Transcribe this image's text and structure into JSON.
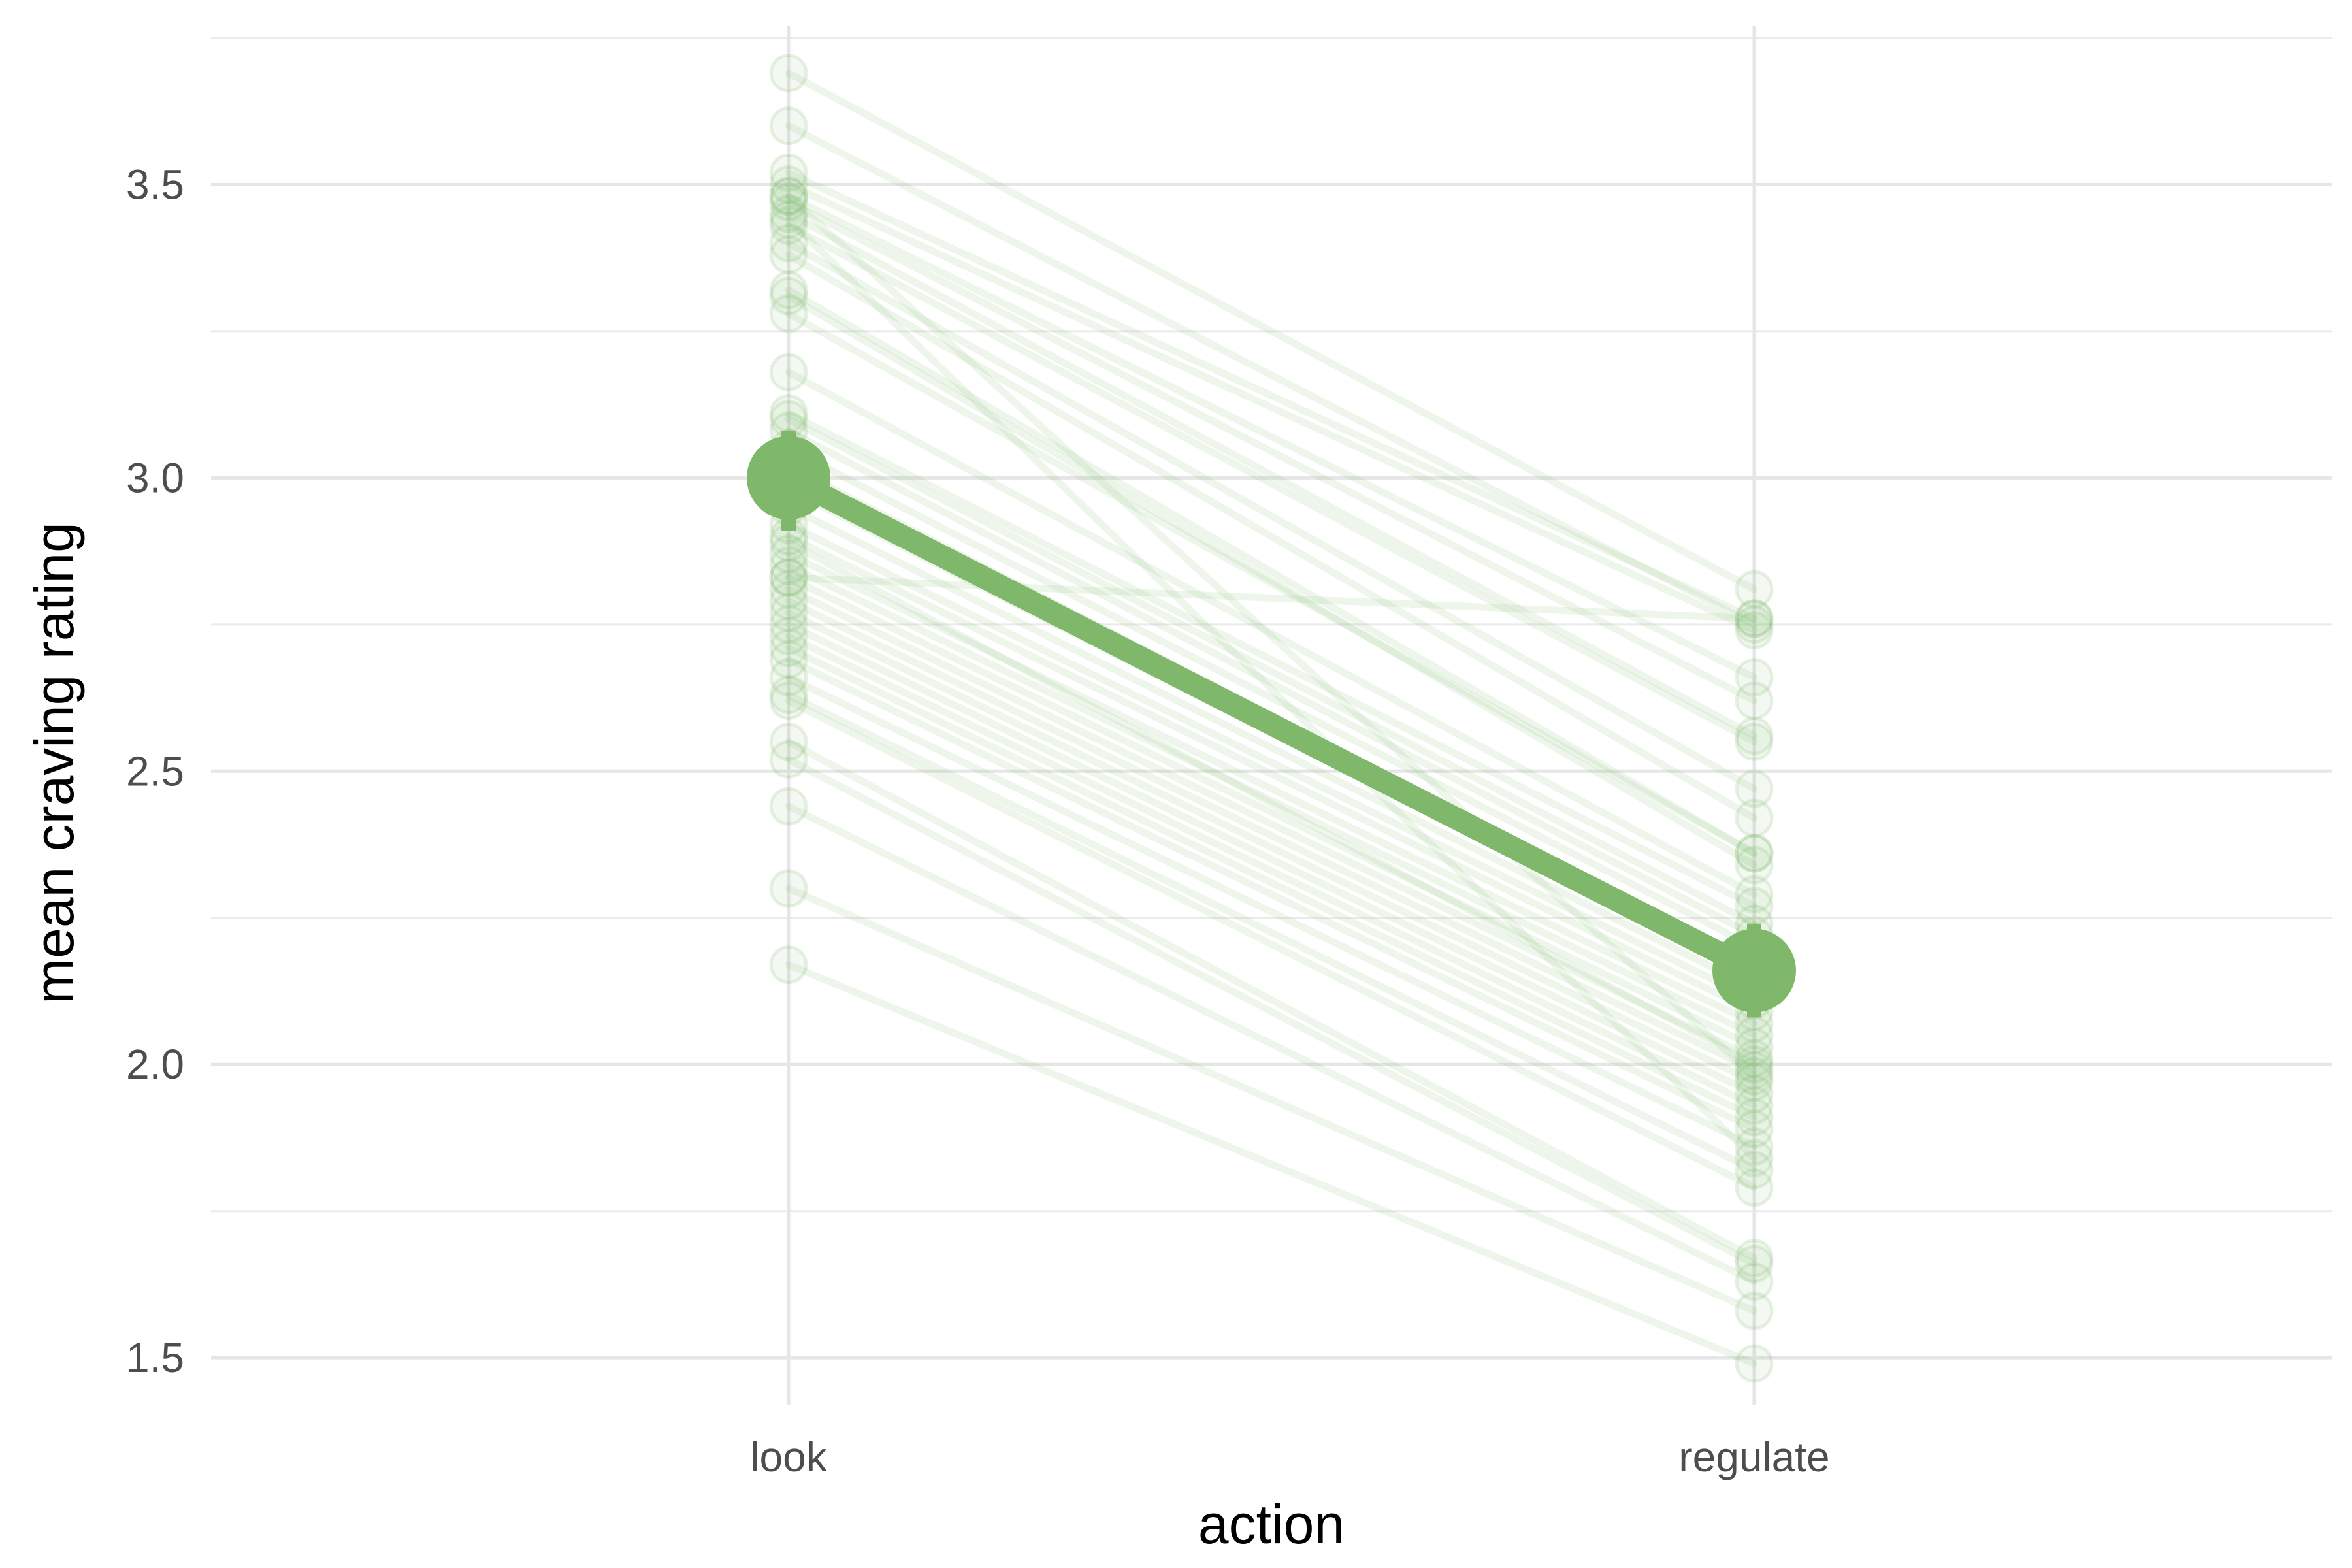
{
  "chart_data": {
    "type": "line",
    "title": "",
    "xlabel": "action",
    "ylabel": "mean craving rating",
    "categories": [
      "look",
      "regulate"
    ],
    "ylim": [
      1.42,
      3.77
    ],
    "yticks": [
      "1.5",
      "2.0",
      "2.5",
      "3.0",
      "3.5"
    ],
    "grid": true,
    "legend": "none",
    "colors": {
      "accent": "#7fb86a",
      "grid": "#e6e6e6"
    },
    "mean": {
      "look": 3.0,
      "regulate": 2.16,
      "look_se": [
        2.91,
        3.08
      ],
      "regulate_se": [
        2.08,
        2.24
      ]
    },
    "subjects": [
      [
        3.69,
        2.81
      ],
      [
        3.6,
        2.75
      ],
      [
        3.52,
        2.76
      ],
      [
        3.5,
        2.74
      ],
      [
        3.48,
        2.66
      ],
      [
        3.47,
        2.62
      ],
      [
        3.45,
        2.56
      ],
      [
        3.43,
        2.55
      ],
      [
        3.4,
        2.47
      ],
      [
        3.38,
        2.42
      ],
      [
        3.32,
        2.36
      ],
      [
        3.31,
        2.34
      ],
      [
        3.18,
        2.29
      ],
      [
        3.11,
        2.27
      ],
      [
        3.1,
        2.24
      ],
      [
        3.08,
        2.22
      ],
      [
        3.05,
        2.2
      ],
      [
        3.02,
        2.17
      ],
      [
        2.98,
        2.15
      ],
      [
        2.95,
        2.13
      ],
      [
        2.92,
        2.11
      ],
      [
        2.9,
        2.09
      ],
      [
        2.87,
        2.07
      ],
      [
        2.85,
        2.05
      ],
      [
        2.83,
        2.03
      ],
      [
        2.81,
        2.01
      ],
      [
        2.79,
        1.99
      ],
      [
        2.77,
        1.97
      ],
      [
        2.75,
        1.95
      ],
      [
        2.73,
        1.93
      ],
      [
        2.71,
        1.91
      ],
      [
        2.69,
        1.89
      ],
      [
        2.66,
        1.86
      ],
      [
        2.63,
        1.82
      ],
      [
        2.62,
        1.79
      ],
      [
        2.55,
        1.67
      ],
      [
        2.52,
        1.66
      ],
      [
        2.44,
        1.63
      ],
      [
        2.3,
        1.58
      ],
      [
        2.17,
        1.49
      ],
      [
        3.28,
        2.36
      ],
      [
        2.89,
        2.0
      ],
      [
        3.44,
        1.84
      ],
      [
        2.83,
        2.76
      ],
      [
        3.48,
        1.98
      ]
    ]
  }
}
